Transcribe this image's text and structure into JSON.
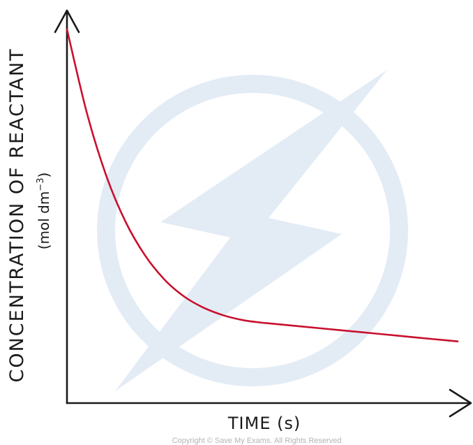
{
  "colors": {
    "curve": "#c8102e",
    "axes": "#1a1a1a",
    "watermark": "#dfe9f3"
  },
  "watermark": {
    "icon": "lightning-bolt-logo"
  },
  "copyright": "Copyright © Save My Exams. All Rights Reserved",
  "chart_data": {
    "type": "line",
    "title": "",
    "xlabel": "TIME (s)",
    "ylabel": "CONCENTRATION OF REACTANT",
    "ylabel_unit": "(mol dm",
    "ylabel_unit_sup": "−3",
    "ylabel_unit_close": ")",
    "grid": false,
    "legend": "none",
    "xlim": [
      0,
      10
    ],
    "ylim": [
      0,
      10
    ],
    "series": [
      {
        "x": [
          0,
          0.5,
          1,
          1.5,
          2,
          2.5,
          3,
          3.5,
          4,
          4.5,
          5,
          6,
          7,
          8,
          9,
          10
        ],
        "values": [
          10,
          7.8,
          6.1,
          4.85,
          3.95,
          3.3,
          2.85,
          2.55,
          2.35,
          2.22,
          2.15,
          2.05,
          1.95,
          1.85,
          1.75,
          1.65
        ]
      }
    ]
  }
}
